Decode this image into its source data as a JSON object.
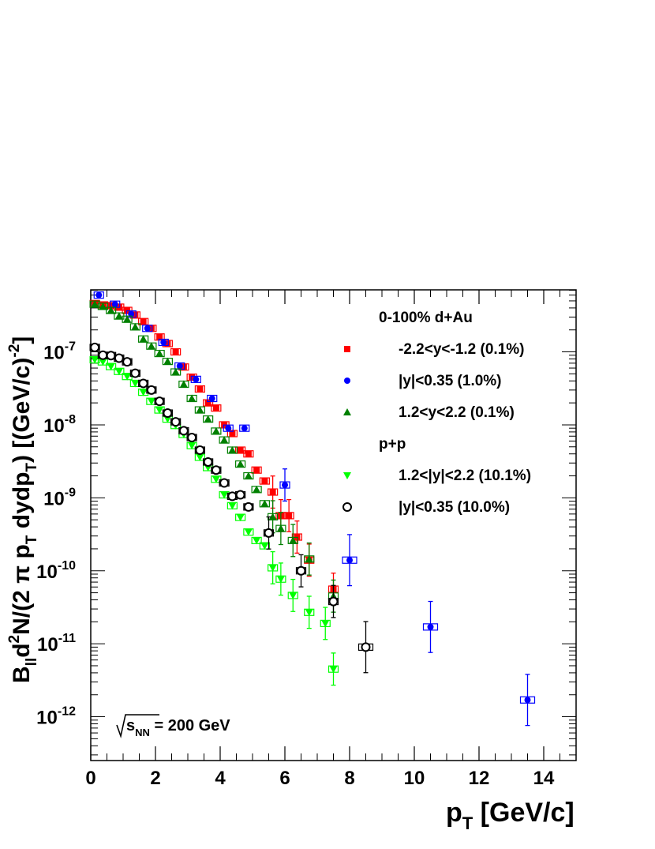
{
  "chart_data": {
    "type": "scatter",
    "xlabel": {
      "main": "p",
      "sub": "T",
      "unit": " [GeV/c]"
    },
    "ylabel": {
      "parts": [
        {
          "t": "B",
          "s": "normal"
        },
        {
          "t": "ll",
          "s": "sub"
        },
        {
          "t": "d",
          "s": "normal"
        },
        {
          "t": "2",
          "s": "sup"
        },
        {
          "t": "N/(2 ",
          "s": "normal"
        },
        {
          "t": "π",
          "s": "normal"
        },
        {
          "t": " p",
          "s": "normal"
        },
        {
          "t": "T",
          "s": "sub"
        },
        {
          "t": " dydp",
          "s": "normal"
        },
        {
          "t": "T",
          "s": "sub"
        },
        {
          "t": ") [(GeV/c)",
          "s": "normal"
        },
        {
          "t": "-2",
          "s": "sup"
        },
        {
          "t": "]",
          "s": "normal"
        }
      ]
    },
    "xlim": [
      0,
      15
    ],
    "ylim_log10": [
      -12.6,
      -6.15
    ],
    "x_ticks": [
      0,
      2,
      4,
      6,
      8,
      10,
      12,
      14
    ],
    "y_ticks": [
      {
        "base": "10",
        "exp": "-7",
        "v": -7
      },
      {
        "base": "10",
        "exp": "-8",
        "v": -8
      },
      {
        "base": "10",
        "exp": "-9",
        "v": -9
      },
      {
        "base": "10",
        "exp": "-10",
        "v": -10
      },
      {
        "base": "10",
        "exp": "-11",
        "v": -11
      },
      {
        "base": "10",
        "exp": "-12",
        "v": -12
      }
    ],
    "annotation": {
      "sym": "s",
      "sub": "NN",
      "rest": " = 200 GeV"
    },
    "legend": [
      {
        "kind": "header",
        "label": "0-100% d+Au"
      },
      {
        "kind": "entry",
        "series": 0,
        "label": "-2.2<y<-1.2 (0.1%)"
      },
      {
        "kind": "entry",
        "series": 1,
        "label": "|y|<0.35 (1.0%)"
      },
      {
        "kind": "entry",
        "series": 2,
        "label": "1.2<y<2.2 (0.1%)"
      },
      {
        "kind": "header",
        "label": "p+p"
      },
      {
        "kind": "entry",
        "series": 3,
        "label": "1.2<|y|<2.2 (10.1%)"
      },
      {
        "kind": "entry",
        "series": 4,
        "label": "|y|<0.35 (10.0%)"
      }
    ],
    "series": [
      {
        "name": "-2.2<y<-1.2 (0.1%)",
        "color": "#ff0000",
        "marker": "square",
        "points": [
          [
            0.125,
            4.6e-07
          ],
          [
            0.375,
            4.4e-07
          ],
          [
            0.625,
            4.3e-07
          ],
          [
            0.875,
            4.1e-07
          ],
          [
            1.125,
            3.7e-07
          ],
          [
            1.375,
            3.2e-07
          ],
          [
            1.625,
            2.6e-07
          ],
          [
            1.875,
            2.1e-07
          ],
          [
            2.125,
            1.6e-07
          ],
          [
            2.375,
            1.3e-07
          ],
          [
            2.625,
            1e-07
          ],
          [
            2.875,
            6.2e-08
          ],
          [
            3.125,
            4.5e-08
          ],
          [
            3.375,
            3.1e-08
          ],
          [
            3.625,
            2e-08
          ],
          [
            3.875,
            1.7e-08
          ],
          [
            4.125,
            1e-08
          ],
          [
            4.375,
            7.6e-09
          ],
          [
            4.625,
            4.5e-09
          ],
          [
            4.875,
            4e-09
          ],
          [
            5.125,
            2.4e-09
          ],
          [
            5.375,
            1.7e-09
          ],
          [
            5.625,
            1.2e-09
          ],
          [
            5.875,
            5.7e-10
          ],
          [
            6.125,
            5.7e-10
          ],
          [
            6.375,
            2.9e-10
          ],
          [
            6.75,
            1.4e-10
          ],
          [
            7.5,
            5.6e-11
          ]
        ]
      },
      {
        "name": "|y|<0.35 (1.0%)",
        "color": "#0000ff",
        "marker": "circle",
        "points": [
          [
            0.25,
            6e-07
          ],
          [
            0.75,
            4.5e-07
          ],
          [
            1.25,
            3.3e-07
          ],
          [
            1.75,
            2.1e-07
          ],
          [
            2.25,
            1.35e-07
          ],
          [
            2.75,
            6.4e-08
          ],
          [
            3.25,
            4.2e-08
          ],
          [
            3.75,
            2.3e-08
          ],
          [
            4.25,
            9e-09
          ],
          [
            4.75,
            9e-09
          ],
          [
            6.0,
            1.5e-09
          ],
          [
            8.0,
            1.4e-10
          ],
          [
            10.5,
            1.7e-11
          ],
          [
            13.5,
            1.7e-12
          ]
        ]
      },
      {
        "name": "1.2<y<2.2 (0.1%)",
        "color": "#008000",
        "marker": "triangle",
        "points": [
          [
            0.125,
            4.5e-07
          ],
          [
            0.375,
            4.2e-07
          ],
          [
            0.625,
            3.7e-07
          ],
          [
            0.875,
            3.1e-07
          ],
          [
            1.125,
            2.8e-07
          ],
          [
            1.375,
            2.2e-07
          ],
          [
            1.625,
            1.5e-07
          ],
          [
            1.875,
            1.2e-07
          ],
          [
            2.125,
            9.5e-08
          ],
          [
            2.375,
            7.4e-08
          ],
          [
            2.625,
            5.3e-08
          ],
          [
            2.875,
            3.6e-08
          ],
          [
            3.125,
            2.3e-08
          ],
          [
            3.375,
            1.6e-08
          ],
          [
            3.625,
            1.2e-08
          ],
          [
            3.875,
            8.2e-09
          ],
          [
            4.125,
            6.2e-09
          ],
          [
            4.375,
            4.5e-09
          ],
          [
            4.625,
            2.9e-09
          ],
          [
            4.875,
            2e-09
          ],
          [
            5.125,
            1.3e-09
          ],
          [
            5.375,
            8.3e-10
          ],
          [
            5.625,
            5.5e-10
          ],
          [
            5.875,
            3.8e-10
          ],
          [
            6.25,
            2.6e-10
          ],
          [
            6.75,
            1.45e-10
          ],
          [
            7.5,
            4.5e-11
          ]
        ]
      },
      {
        "name": "1.2<|y|<2.2 (10.1%)",
        "color": "#00ff00",
        "marker": "triangle-down",
        "points": [
          [
            0.125,
            7.8e-08
          ],
          [
            0.375,
            7.3e-08
          ],
          [
            0.625,
            6.3e-08
          ],
          [
            0.875,
            5.4e-08
          ],
          [
            1.125,
            4.6e-08
          ],
          [
            1.375,
            3.7e-08
          ],
          [
            1.625,
            2.8e-08
          ],
          [
            1.875,
            2.1e-08
          ],
          [
            2.125,
            1.6e-08
          ],
          [
            2.375,
            1.2e-08
          ],
          [
            2.625,
            9.8e-09
          ],
          [
            2.875,
            7.4e-09
          ],
          [
            3.125,
            5.2e-09
          ],
          [
            3.375,
            3.6e-09
          ],
          [
            3.625,
            2.6e-09
          ],
          [
            3.875,
            1.8e-09
          ],
          [
            4.125,
            1.1e-09
          ],
          [
            4.375,
            7.8e-10
          ],
          [
            4.625,
            5.4e-10
          ],
          [
            4.875,
            3.4e-10
          ],
          [
            5.125,
            2.6e-10
          ],
          [
            5.375,
            2.2e-10
          ],
          [
            5.625,
            1.1e-10
          ],
          [
            5.875,
            7.7e-11
          ],
          [
            6.25,
            4.6e-11
          ],
          [
            6.75,
            2.7e-11
          ],
          [
            7.25,
            1.9e-11
          ],
          [
            7.5,
            4.5e-12
          ]
        ]
      },
      {
        "name": "|y|<0.35 (10.0%)",
        "color": "#000000",
        "marker": "open-circle",
        "points": [
          [
            0.125,
            1.15e-07
          ],
          [
            0.375,
            9e-08
          ],
          [
            0.625,
            8.9e-08
          ],
          [
            0.875,
            8.2e-08
          ],
          [
            1.125,
            7.3e-08
          ],
          [
            1.375,
            5.1e-08
          ],
          [
            1.625,
            3.7e-08
          ],
          [
            1.875,
            3e-08
          ],
          [
            2.125,
            2.1e-08
          ],
          [
            2.375,
            1.45e-08
          ],
          [
            2.625,
            1.1e-08
          ],
          [
            2.875,
            8.3e-09
          ],
          [
            3.125,
            6.7e-09
          ],
          [
            3.375,
            4.5e-09
          ],
          [
            3.625,
            3.1e-09
          ],
          [
            3.875,
            2.4e-09
          ],
          [
            4.125,
            1.6e-09
          ],
          [
            4.375,
            1.05e-09
          ],
          [
            4.625,
            1.1e-09
          ],
          [
            4.875,
            7.5e-10
          ],
          [
            5.5,
            3.3e-10
          ],
          [
            6.5,
            1e-10
          ],
          [
            7.5,
            3.8e-11
          ],
          [
            8.5,
            9e-12
          ]
        ]
      }
    ]
  }
}
